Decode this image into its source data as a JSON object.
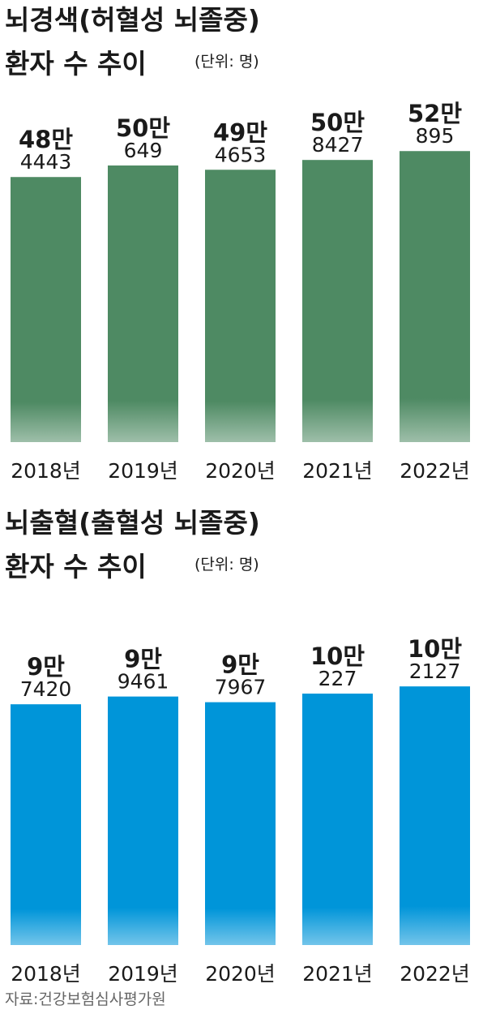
{
  "chart_data": [
    {
      "type": "bar",
      "title": "뇌경색(허혈성 뇌졸중)",
      "subtitle": "환자 수 추이",
      "unit": "(단위: 명)",
      "categories": [
        "2018년",
        "2019년",
        "2020년",
        "2021년",
        "2022년"
      ],
      "values": [
        484443,
        500649,
        494653,
        508427,
        520895
      ],
      "value_labels": [
        [
          "48만",
          "4443"
        ],
        [
          "50만",
          "649"
        ],
        [
          "49만",
          "4653"
        ],
        [
          "50만",
          "8427"
        ],
        [
          "52만",
          "895"
        ]
      ],
      "color": "#4e8a63",
      "ylim": [
        112000,
        585000
      ]
    },
    {
      "type": "bar",
      "title": "뇌출혈(출혈성 뇌졸중)",
      "subtitle": "환자 수 추이",
      "unit": "(단위: 명)",
      "categories": [
        "2018년",
        "2019년",
        "2020년",
        "2021년",
        "2022년"
      ],
      "values": [
        97420,
        99461,
        97967,
        100227,
        102127
      ],
      "value_labels": [
        [
          "9만",
          "7420"
        ],
        [
          "9만",
          "9461"
        ],
        [
          "9만",
          "7967"
        ],
        [
          "10만",
          "227"
        ],
        [
          "10만",
          "2127"
        ]
      ],
      "color": "#0095d9",
      "ylim": [
        34000,
        118400
      ]
    }
  ],
  "source": "자료:건강보험심사평가원"
}
